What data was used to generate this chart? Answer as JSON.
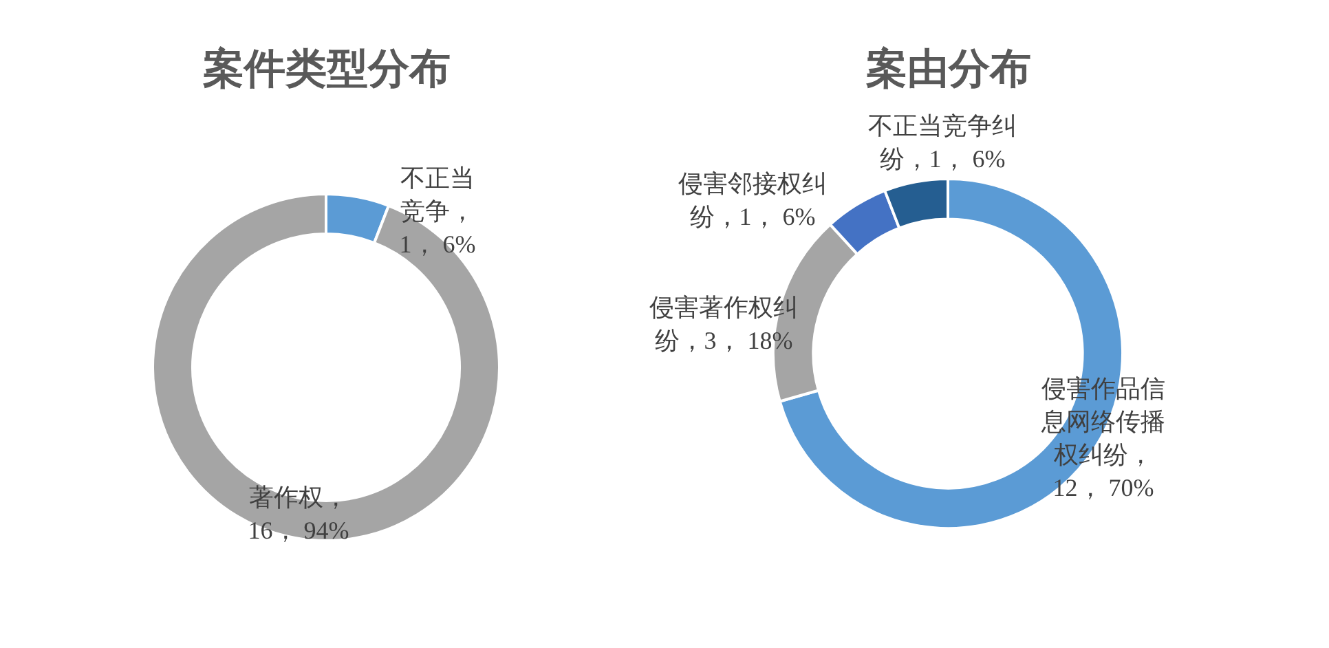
{
  "chart_data": [
    {
      "type": "donut",
      "title": "案件类型分布",
      "categories": [
        "不正当竞争",
        "著作权"
      ],
      "values": [
        1,
        16
      ],
      "colors": [
        "#5b9bd5",
        "#a5a5a5"
      ],
      "value_labels": [
        "，1， 6%",
        "，16， 94%"
      ]
    },
    {
      "type": "donut",
      "title": "案由分布",
      "categories": [
        "侵害作品信息网络传播权纠纷",
        "侵害著作权纠纷",
        "侵害邻接权纠纷",
        "不正当竞争纠纷"
      ],
      "values": [
        12,
        3,
        1,
        1
      ],
      "colors": [
        "#5b9bd5",
        "#a5a5a5",
        "#4472c4",
        "#255e91"
      ],
      "value_labels": [
        "，12， 70%",
        "，3， 18%",
        "，1， 6%",
        "，1， 6%"
      ]
    }
  ]
}
